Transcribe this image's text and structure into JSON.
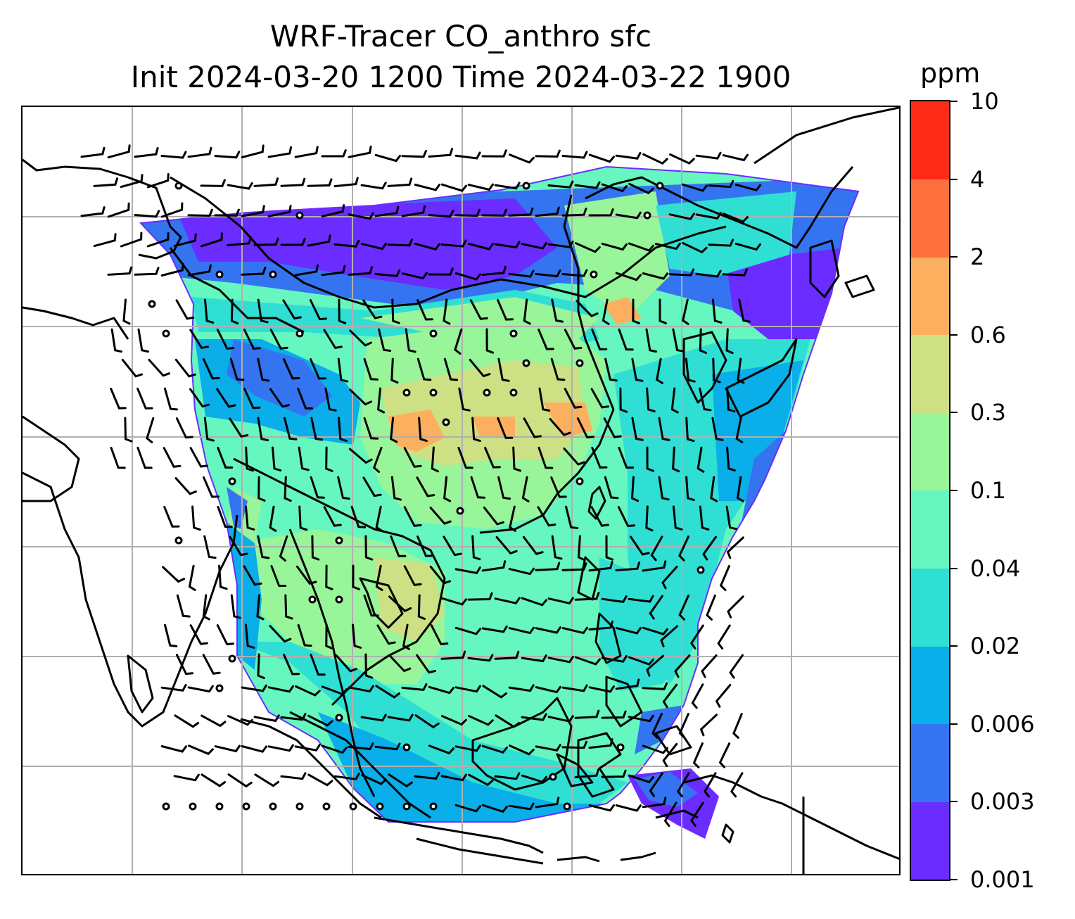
{
  "title": {
    "line1": "WRF-Tracer CO_anthro sfc",
    "line2": "Init 2024-03-20 1200 Time 2024-03-22 1900"
  },
  "colorbar": {
    "unit": "ppm",
    "levels": [
      "0.001",
      "0.003",
      "0.006",
      "0.02",
      "0.04",
      "0.1",
      "0.3",
      "0.6",
      "2",
      "4",
      "10"
    ],
    "colors": [
      "#6a2cff",
      "#3574f0",
      "#0aaee8",
      "#2fdfd4",
      "#66f6bf",
      "#98f59a",
      "#cde083",
      "#fdaf60",
      "#fd6f3c",
      "#fd2a18"
    ]
  },
  "map": {
    "gridlines": true,
    "gridline_color": "#b0b0b0",
    "coastline_color": "#000000",
    "field": "CO_anthro surface concentration",
    "wind_barbs": true
  }
}
